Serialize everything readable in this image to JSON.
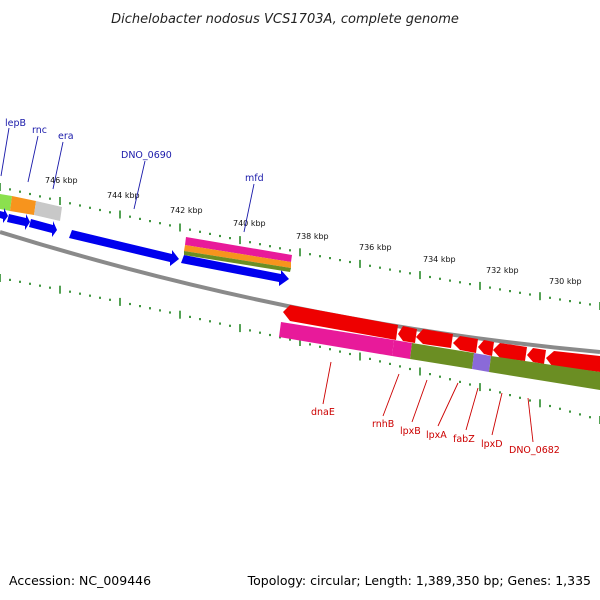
{
  "title": "Dichelobacter nodosus VCS1703A, complete genome",
  "footer": {
    "accession": "Accession: NC_009446",
    "summary": "Topology: circular; Length: 1,389,350 bp; Genes: 1,335"
  },
  "ruler_labels": [
    "746 kbp",
    "744 kbp",
    "742 kbp",
    "740 kbp",
    "738 kbp",
    "736 kbp",
    "734 kbp",
    "732 kbp",
    "730 kbp"
  ],
  "upper_gene_labels": [
    "lepB",
    "rnc",
    "era",
    "DNO_0690",
    "mfd"
  ],
  "lower_gene_labels": [
    "dnaE",
    "rnhB",
    "lpxB",
    "lpxA",
    "fabZ",
    "lpxD",
    "DNO_0682"
  ],
  "colors": {
    "forward_gene": "#0000ee",
    "reverse_gene": "#ee0000",
    "backbone": "#888888",
    "tick": "#2a8a2a",
    "magenta": "#e81a9a",
    "orange": "#f7941d",
    "olive": "#6b8e23",
    "light_green": "#8be04e",
    "grey": "#c8c8c8",
    "violet": "#8a6ad8"
  }
}
